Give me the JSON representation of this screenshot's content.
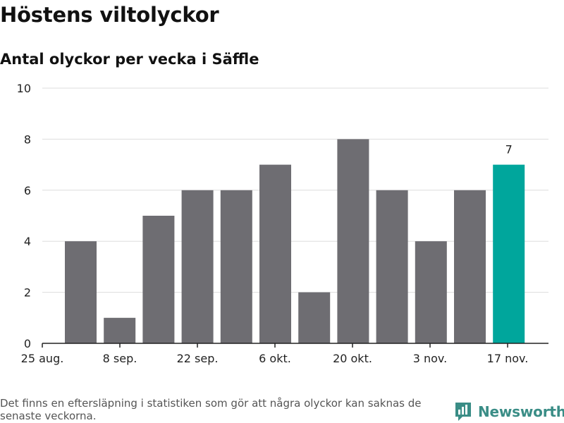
{
  "header": {
    "title": "Höstens viltolyckor",
    "subtitle": "Antal olyckor per vecka i Säffle"
  },
  "footer": {
    "note": "Det finns en eftersläpning i statistiken som gör att några olyckor kan saknas de senaste veckorna.",
    "brand": "Newsworthy"
  },
  "colors": {
    "bar": "#6e6d72",
    "highlight": "#00a69c",
    "grid": "#dddddd",
    "brand": "#3a8d86"
  },
  "chart_data": {
    "type": "bar",
    "x_tick_labels": [
      "25 aug.",
      "8 sep.",
      "22 sep.",
      "6 okt.",
      "20 okt.",
      "3 nov.",
      "17 nov."
    ],
    "values": [
      4,
      1,
      5,
      6,
      6,
      7,
      2,
      8,
      6,
      4,
      6,
      7
    ],
    "highlight_index": 11,
    "highlight_label": "7",
    "ylim": [
      0,
      10
    ],
    "y_ticks": [
      0,
      2,
      4,
      6,
      8,
      10
    ],
    "grid": true
  }
}
